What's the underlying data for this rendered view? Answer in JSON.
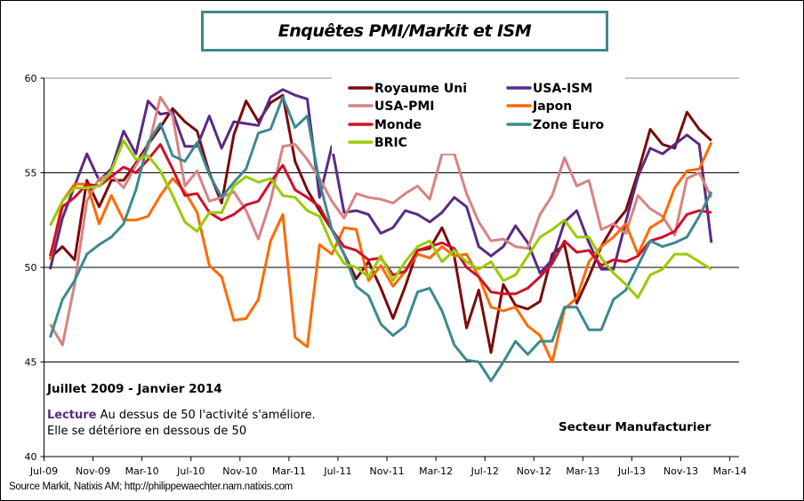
{
  "chart_data": {
    "type": "line",
    "title": "Enquêtes PMI/Markit et ISM",
    "xlabel": "",
    "ylabel": "",
    "ylim": [
      40,
      60
    ],
    "yticks": [
      "60",
      "55",
      "50",
      "45",
      "40"
    ],
    "gridlines_at": [
      55,
      50,
      45
    ],
    "xticks": [
      "Jul-09",
      "Nov-09",
      "Mar-10",
      "Jul-10",
      "Nov-10",
      "Mar-11",
      "Jul-11",
      "Nov-11",
      "Mar-12",
      "Jul-12",
      "Nov-12",
      "Mar-13",
      "Jul-13",
      "Nov-13",
      "Mar-14"
    ],
    "x": [
      "Jul-09",
      "Aug-09",
      "Sep-09",
      "Oct-09",
      "Nov-09",
      "Dec-09",
      "Jan-10",
      "Feb-10",
      "Mar-10",
      "Apr-10",
      "May-10",
      "Jun-10",
      "Jul-10",
      "Aug-10",
      "Sep-10",
      "Oct-10",
      "Nov-10",
      "Dec-10",
      "Jan-11",
      "Feb-11",
      "Mar-11",
      "Apr-11",
      "May-11",
      "Jun-11",
      "Jul-11",
      "Aug-11",
      "Sep-11",
      "Oct-11",
      "Nov-11",
      "Dec-11",
      "Jan-12",
      "Feb-12",
      "Mar-12",
      "Apr-12",
      "May-12",
      "Jun-12",
      "Jul-12",
      "Aug-12",
      "Sep-12",
      "Oct-12",
      "Nov-12",
      "Dec-12",
      "Jan-13",
      "Feb-13",
      "Mar-13",
      "Apr-13",
      "May-13",
      "Jun-13",
      "Jul-13",
      "Aug-13",
      "Sep-13",
      "Oct-13",
      "Nov-13",
      "Dec-13",
      "Jan-14"
    ],
    "legend_position": "top-right",
    "series": [
      {
        "name": "Royaume Uni",
        "color": "#7b0a0a",
        "values": [
          50.5,
          51.1,
          50.4,
          54.6,
          53.2,
          54.6,
          54.6,
          55.5,
          56.5,
          57.4,
          58.4,
          57.7,
          57.2,
          55.0,
          53.4,
          57.0,
          58.8,
          57.7,
          58.7,
          59.1,
          55.6,
          54.1,
          53.0,
          52.0,
          50.7,
          49.4,
          50.3,
          48.9,
          47.3,
          49.0,
          50.9,
          51.0,
          52.1,
          50.6,
          46.8,
          48.8,
          45.5,
          49.1,
          48.0,
          47.8,
          48.2,
          50.7,
          51.2,
          48.1,
          49.5,
          51.1,
          52.2,
          53.0,
          55.0,
          57.3,
          56.5,
          56.3,
          58.2,
          57.3,
          56.7
        ]
      },
      {
        "name": "USA-ISM",
        "color": "#5b2a83",
        "values": [
          49.9,
          52.6,
          54.3,
          56.0,
          54.6,
          55.2,
          57.2,
          56.0,
          58.8,
          58.1,
          58.2,
          56.4,
          56.4,
          58.0,
          56.3,
          57.7,
          57.6,
          57.5,
          59.0,
          59.4,
          59.1,
          58.9,
          53.7,
          56.4,
          52.9,
          53.0,
          52.8,
          51.8,
          52.1,
          53.0,
          52.8,
          52.4,
          52.9,
          53.7,
          53.2,
          51.1,
          50.6,
          51.1,
          52.2,
          51.3,
          49.7,
          50.4,
          52.4,
          53.0,
          51.3,
          49.9,
          49.9,
          52.4,
          54.8,
          56.3,
          56.0,
          56.5,
          57.0,
          56.5,
          51.3
        ]
      },
      {
        "name": "USA-PMI",
        "color": "#d98282",
        "values": [
          47.0,
          45.9,
          49.1,
          53.5,
          54.7,
          54.9,
          54.2,
          55.4,
          56.3,
          59.0,
          58.0,
          54.3,
          55.1,
          53.5,
          53.7,
          54.0,
          53.0,
          51.5,
          53.5,
          56.4,
          56.5,
          55.7,
          54.7,
          53.5,
          52.6,
          53.9,
          53.7,
          53.6,
          53.4,
          53.9,
          54.3,
          53.6,
          56.0,
          56.0,
          53.9,
          52.4,
          51.4,
          51.5,
          51.1,
          51.0,
          52.8,
          53.8,
          55.8,
          54.3,
          54.6,
          52.0,
          52.3,
          51.8,
          53.8,
          53.1,
          52.7,
          51.7,
          54.7,
          55.0,
          53.7
        ]
      },
      {
        "name": "Japon",
        "color": "#ff6a00",
        "values": [
          50.4,
          53.5,
          54.4,
          54.4,
          52.3,
          53.8,
          52.5,
          52.5,
          52.7,
          53.8,
          54.7,
          54.0,
          52.9,
          50.1,
          49.5,
          47.2,
          47.3,
          48.3,
          51.4,
          52.8,
          46.3,
          45.8,
          51.2,
          50.7,
          52.1,
          52.0,
          49.3,
          50.1,
          49.0,
          49.8,
          50.7,
          50.5,
          51.1,
          50.6,
          50.7,
          49.5,
          47.9,
          47.7,
          47.9,
          46.9,
          46.4,
          45.0,
          47.8,
          48.4,
          50.3,
          51.1,
          51.6,
          52.3,
          50.7,
          52.1,
          52.5,
          54.2,
          55.1,
          55.2,
          56.6
        ]
      },
      {
        "name": "Monde",
        "color": "#d0102a",
        "values": [
          50.6,
          53.2,
          53.7,
          54.4,
          54.3,
          54.8,
          55.3,
          55.0,
          55.7,
          56.5,
          55.2,
          53.8,
          53.9,
          52.9,
          52.5,
          52.8,
          53.3,
          53.5,
          54.5,
          55.4,
          54.1,
          53.7,
          53.2,
          52.0,
          51.1,
          50.9,
          50.4,
          50.5,
          49.6,
          49.8,
          50.9,
          51.1,
          51.3,
          51.0,
          50.0,
          49.5,
          48.7,
          48.6,
          48.6,
          48.9,
          49.5,
          50.2,
          51.4,
          50.8,
          50.9,
          50.1,
          50.4,
          50.3,
          50.6,
          51.4,
          51.6,
          51.9,
          52.8,
          53.0,
          52.9
        ]
      },
      {
        "name": "Zone Euro",
        "color": "#3a8a90",
        "values": [
          46.3,
          48.3,
          49.3,
          50.7,
          51.2,
          51.6,
          52.3,
          54.1,
          56.6,
          57.6,
          55.9,
          55.6,
          56.6,
          54.9,
          53.7,
          54.5,
          55.2,
          57.1,
          57.3,
          59.0,
          57.4,
          58.0,
          54.5,
          52.0,
          50.7,
          49.0,
          48.5,
          47.0,
          46.4,
          46.9,
          48.7,
          48.9,
          47.7,
          45.9,
          45.1,
          45.0,
          44.0,
          45.0,
          46.1,
          45.4,
          46.1,
          46.1,
          47.9,
          47.9,
          46.7,
          46.7,
          48.3,
          48.8,
          50.1,
          51.4,
          51.1,
          51.3,
          51.6,
          52.7,
          54.0
        ]
      },
      {
        "name": "BRIC",
        "color": "#99cc00",
        "values": [
          52.2,
          53.5,
          54.2,
          54.2,
          54.3,
          55.1,
          56.7,
          55.7,
          55.9,
          55.1,
          53.8,
          52.4,
          51.9,
          52.9,
          52.9,
          54.3,
          54.8,
          54.5,
          54.7,
          53.8,
          53.7,
          53.0,
          52.7,
          51.2,
          50.2,
          50.0,
          49.5,
          50.6,
          49.3,
          50.3,
          51.1,
          51.4,
          50.3,
          50.9,
          50.3,
          49.9,
          50.3,
          49.3,
          49.6,
          50.6,
          51.6,
          52.0,
          52.5,
          51.6,
          51.6,
          50.5,
          49.7,
          49.1,
          48.4,
          49.6,
          49.9,
          50.7,
          50.7,
          50.3,
          49.9
        ]
      }
    ]
  },
  "annotations": {
    "period": "Juillet 2009 - Janvier 2014",
    "lecture_label": "Lecture",
    "lecture_text": " Au dessus de 50 l'activité s'améliore.",
    "lecture_line2": "Elle se détériore en dessous de 50",
    "sector": "Secteur Manufacturier"
  },
  "source": "Source Markit, Natixis AM; http://philippewaechter.nam.natixis.com",
  "colors": {
    "title_border": "#3a8a90",
    "lecture_label": "#5b2a83"
  }
}
